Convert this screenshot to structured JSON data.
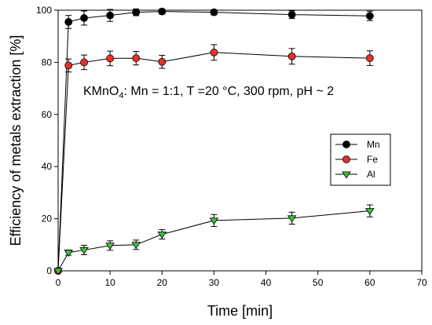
{
  "chart_data": {
    "type": "line",
    "title": "",
    "xlabel": "Time [min]",
    "ylabel": "Efficiency of metals extraction [%]",
    "xlim": [
      0,
      70
    ],
    "ylim": [
      0,
      100
    ],
    "xticks": [
      0,
      10,
      20,
      30,
      40,
      50,
      60,
      70
    ],
    "yticks": [
      0,
      20,
      40,
      60,
      80,
      100
    ],
    "grid": false,
    "legend_position": "right",
    "annotation": {
      "prefix": "KMnO",
      "subscript": "4",
      "suffix": ": Mn = 1:1, T =20 °C, 300 rpm, pH ~ 2"
    },
    "x": [
      0,
      2,
      5,
      10,
      15,
      20,
      30,
      45,
      60
    ],
    "series": [
      {
        "name": "Mn",
        "color": "#000000",
        "marker": "circle",
        "values": [
          0,
          95.5,
          97,
          98,
          99.2,
          99.5,
          99.2,
          98.3,
          97.8
        ],
        "errors": [
          0,
          2.5,
          2.7,
          2.3,
          1.3,
          1.0,
          1.0,
          1.5,
          1.8
        ]
      },
      {
        "name": "Fe",
        "color": "#e8302a",
        "marker": "circle",
        "values": [
          0,
          78.8,
          80,
          81.5,
          81.6,
          80.2,
          83.8,
          82.3,
          81.6
        ],
        "errors": [
          0,
          2.5,
          2.8,
          2.8,
          2.6,
          2.5,
          3.0,
          3.0,
          2.8
        ]
      },
      {
        "name": "Al",
        "color": "#3cc13c",
        "marker": "triangle-down",
        "values": [
          0,
          7,
          8,
          9.7,
          10,
          14,
          19.3,
          20.2,
          23
        ],
        "errors": [
          0,
          1.0,
          1.8,
          1.8,
          1.8,
          1.8,
          2.3,
          2.3,
          2.3
        ]
      }
    ]
  }
}
